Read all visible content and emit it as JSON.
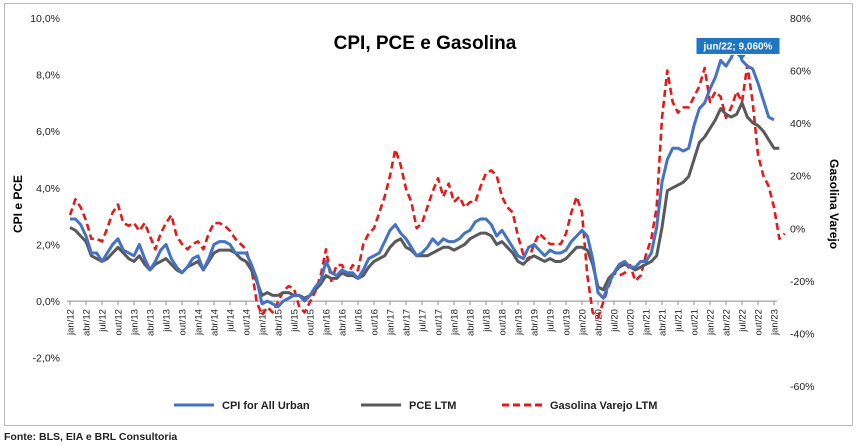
{
  "chart_data": {
    "type": "line",
    "title": "CPI, PCE e Gasolina",
    "ylabel": "CPI e PCE",
    "y2label": "Gasolina Varejo",
    "ylim": [
      -3,
      10
    ],
    "y2lim": [
      -60,
      80
    ],
    "yticks": [
      "-2,0%",
      "0,0%",
      "2,0%",
      "4,0%",
      "6,0%",
      "8,0%",
      "10,0%"
    ],
    "y2ticks": [
      "-60%",
      "-40%",
      "-20%",
      "0%",
      "20%",
      "40%",
      "60%",
      "80%"
    ],
    "x_start": "jan/12",
    "x_end": "jan/23",
    "xtick_labels": [
      "jan/12",
      "abr/12",
      "jul/12",
      "out/12",
      "jan/13",
      "abr/13",
      "jul/13",
      "out/13",
      "jan/14",
      "abr/14",
      "jul/14",
      "out/14",
      "jan/15",
      "abr/15",
      "jul/15",
      "out/15",
      "jan/16",
      "abr/16",
      "jul/16",
      "out/16",
      "jan/17",
      "abr/17",
      "jul/17",
      "out/17",
      "jan/18",
      "abr/18",
      "jul/18",
      "out/18",
      "jan/19",
      "abr/19",
      "jul/19",
      "out/19",
      "jan/20",
      "abr/20",
      "jul/20",
      "out/20",
      "jan/21",
      "abr/21",
      "jul/21",
      "out/21",
      "jan/22",
      "abr/22",
      "jul/22",
      "out/22",
      "jan/23"
    ],
    "series": [
      {
        "name": "CPI for All Urban",
        "axis": "left",
        "color": "#4472C4",
        "style": "solid",
        "values": [
          2.9,
          2.9,
          2.7,
          2.3,
          1.7,
          1.7,
          1.4,
          1.7,
          2.0,
          2.2,
          1.8,
          1.7,
          1.6,
          2.0,
          1.5,
          1.1,
          1.4,
          1.8,
          2.0,
          1.5,
          1.2,
          1.0,
          1.2,
          1.5,
          1.6,
          1.1,
          1.5,
          2.0,
          2.1,
          2.1,
          2.0,
          1.7,
          1.7,
          1.7,
          1.3,
          0.8,
          -0.1,
          0.0,
          -0.1,
          -0.2,
          0.0,
          0.1,
          0.2,
          0.2,
          0.0,
          0.2,
          0.5,
          0.7,
          1.4,
          1.0,
          0.9,
          1.1,
          1.0,
          1.0,
          0.8,
          1.1,
          1.5,
          1.6,
          1.7,
          2.1,
          2.5,
          2.7,
          2.4,
          2.2,
          1.9,
          1.6,
          1.7,
          1.9,
          2.2,
          2.0,
          2.2,
          2.1,
          2.1,
          2.2,
          2.4,
          2.5,
          2.8,
          2.9,
          2.9,
          2.7,
          2.3,
          2.5,
          2.2,
          1.9,
          1.6,
          1.5,
          1.9,
          2.0,
          1.8,
          1.6,
          1.8,
          1.7,
          1.7,
          1.8,
          2.1,
          2.3,
          2.5,
          2.3,
          1.5,
          0.3,
          0.1,
          0.6,
          1.0,
          1.3,
          1.4,
          1.2,
          1.2,
          1.4,
          1.4,
          1.7,
          2.6,
          4.2,
          5.0,
          5.4,
          5.4,
          5.3,
          5.4,
          6.2,
          6.8,
          7.0,
          7.5,
          7.9,
          8.5,
          8.3,
          8.6,
          9.06,
          8.5,
          8.3,
          8.2,
          7.7,
          7.1,
          6.5,
          6.4
        ],
        "callout": {
          "index": 126,
          "label": "jun/22; 9,060%"
        }
      },
      {
        "name": "PCE LTM",
        "axis": "left",
        "color": "#595959",
        "style": "solid",
        "values": [
          2.6,
          2.5,
          2.3,
          2.1,
          1.6,
          1.5,
          1.4,
          1.5,
          1.7,
          1.9,
          1.7,
          1.5,
          1.4,
          1.6,
          1.3,
          1.1,
          1.3,
          1.4,
          1.5,
          1.3,
          1.1,
          1.0,
          1.2,
          1.3,
          1.4,
          1.1,
          1.4,
          1.7,
          1.8,
          1.8,
          1.8,
          1.7,
          1.5,
          1.4,
          1.1,
          0.7,
          0.2,
          0.3,
          0.2,
          0.2,
          0.3,
          0.3,
          0.2,
          0.2,
          0.1,
          0.2,
          0.4,
          0.6,
          0.9,
          0.8,
          0.8,
          1.0,
          0.9,
          0.9,
          0.8,
          0.9,
          1.2,
          1.4,
          1.5,
          1.6,
          1.9,
          2.1,
          2.2,
          1.9,
          1.8,
          1.6,
          1.6,
          1.6,
          1.7,
          1.8,
          1.9,
          1.9,
          1.8,
          1.9,
          2.0,
          2.2,
          2.3,
          2.4,
          2.4,
          2.3,
          2.0,
          2.1,
          1.9,
          1.7,
          1.4,
          1.3,
          1.5,
          1.6,
          1.5,
          1.4,
          1.5,
          1.4,
          1.4,
          1.5,
          1.7,
          1.9,
          1.9,
          1.8,
          1.3,
          0.5,
          0.4,
          0.8,
          1.0,
          1.2,
          1.3,
          1.2,
          1.1,
          1.2,
          1.3,
          1.4,
          1.6,
          2.6,
          3.9,
          4.0,
          4.1,
          4.2,
          4.4,
          5.0,
          5.6,
          5.8,
          6.1,
          6.4,
          6.8,
          6.6,
          6.5,
          6.6,
          7.0,
          6.5,
          6.3,
          6.2,
          6.0,
          5.7,
          5.4,
          5.4
        ],
        "callout": null
      },
      {
        "name": "Gasolina Varejo LTM",
        "axis": "right",
        "color": "#E31A1C",
        "style": "dashed",
        "values": [
          5,
          11,
          8,
          3,
          -4,
          -4,
          -5,
          0,
          6,
          9,
          2,
          1,
          2,
          -1,
          2,
          -3,
          -8,
          -2,
          2,
          5,
          -3,
          -6,
          -8,
          -6,
          -5,
          -8,
          -2,
          2,
          2,
          1,
          -1,
          -4,
          -6,
          -8,
          -15,
          -28,
          -33,
          -30,
          -32,
          -28,
          -24,
          -22,
          -23,
          -30,
          -32,
          -28,
          -24,
          -18,
          -8,
          -20,
          -14,
          -14,
          -18,
          -14,
          -16,
          -6,
          -2,
          0,
          6,
          12,
          20,
          30,
          24,
          15,
          10,
          0,
          2,
          8,
          14,
          19,
          12,
          17,
          10,
          12,
          8,
          10,
          10,
          16,
          21,
          22,
          20,
          12,
          8,
          6,
          -3,
          -10,
          -12,
          -6,
          -2,
          -4,
          -6,
          -6,
          -6,
          -2,
          6,
          12,
          6,
          -18,
          -32,
          -34,
          -28,
          -22,
          -17,
          -18,
          -17,
          -14,
          -20,
          -18,
          -10,
          -4,
          8,
          42,
          60,
          48,
          44,
          46,
          46,
          50,
          54,
          61,
          48,
          52,
          50,
          42,
          46,
          52,
          48,
          62,
          48,
          28,
          20,
          16,
          8,
          -4,
          -2
        ],
        "callout": null
      }
    ],
    "legend": [
      "CPI for All Urban",
      "PCE LTM",
      "Gasolina Varejo LTM"
    ],
    "legend_position": "bottom",
    "grid": false
  },
  "source_note": "Fonte: BLS, EIA e BRL Consultoria"
}
